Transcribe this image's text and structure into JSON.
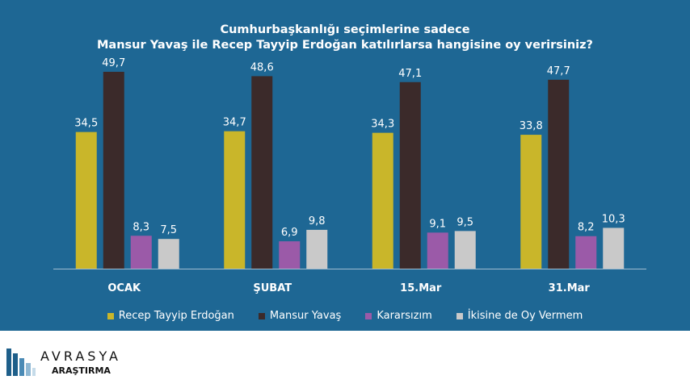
{
  "title_line1": "Cumhurbaşkanlığı seçimlerine sadece",
  "title_line2": "Mansur Yavaş ile Recep Tayyip Erdoğan katılırlarsa hangisine oy verirsiniz?",
  "brand": "AVRASYA",
  "brand_sub": "ARAŞTIRMA",
  "chart_data": {
    "type": "bar",
    "title": "Cumhurbaşkanlığı seçimlerine sadece Mansur Yavaş ile Recep Tayyip Erdoğan katılırlarsa hangisine oy verirsiniz?",
    "categories": [
      "OCAK",
      "ŞUBAT",
      "15.Mar",
      "31.Mar"
    ],
    "series": [
      {
        "name": "Recep Tayyip Erdoğan",
        "color": "#c9b62a",
        "values": [
          34.5,
          34.7,
          34.3,
          33.8
        ],
        "labels": [
          "34,5",
          "34,7",
          "34,3",
          "33,8"
        ]
      },
      {
        "name": "Mansur Yavaş",
        "color": "#3b2a2a",
        "values": [
          49.7,
          48.6,
          47.1,
          47.7
        ],
        "labels": [
          "49,7",
          "48,6",
          "47,1",
          "47,7"
        ]
      },
      {
        "name": "Kararsızım",
        "color": "#9b5aa8",
        "values": [
          8.3,
          6.9,
          9.1,
          8.2
        ],
        "labels": [
          "8,3",
          "6,9",
          "9,1",
          "8,2"
        ]
      },
      {
        "name": "İkisine de Oy Vermem",
        "color": "#c9c9c9",
        "values": [
          7.5,
          9.8,
          9.5,
          10.3
        ],
        "labels": [
          "7,5",
          "9,8",
          "9,5",
          "10,3"
        ]
      }
    ],
    "ylim": [
      0,
      55
    ],
    "grid": false,
    "legend_position": "bottom"
  }
}
